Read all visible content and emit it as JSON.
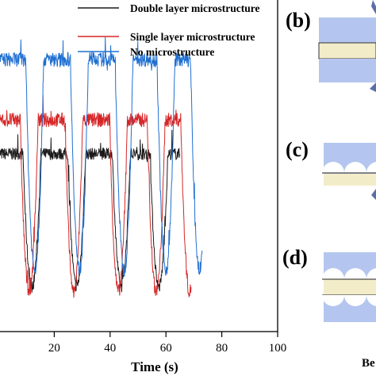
{
  "chart_data": {
    "type": "line",
    "xlabel": "Time (s)",
    "ylabel": "",
    "xlim": [
      0,
      100
    ],
    "x_ticks": [
      20,
      40,
      60,
      80,
      100
    ],
    "x_tick_labels": [
      "20",
      "40",
      "60",
      "80",
      "100"
    ],
    "legend_position": "top-right",
    "grid": false,
    "series": [
      {
        "name": "Double layer microstructure",
        "color": "#1a1a1a",
        "t_end": 65,
        "high": 0.61,
        "low": 0.06,
        "noise": 0.025,
        "dips": [
          12,
          28,
          44,
          57.5
        ]
      },
      {
        "name": "Single layer microstructure",
        "color": "#d62728",
        "t_end": 69,
        "high": 0.75,
        "low": 0.04,
        "noise": 0.03,
        "dips": [
          11,
          27,
          43,
          56.5,
          68.5
        ]
      },
      {
        "name": "No microstructure",
        "color": "#1f6fd1",
        "t_end": 73,
        "high": 1.0,
        "low": 0.13,
        "noise": 0.03,
        "dips": [
          13,
          29,
          45,
          60,
          72
        ]
      }
    ]
  },
  "panels": [
    {
      "letter": "(b)"
    },
    {
      "letter": "(c)"
    },
    {
      "letter": "(d)"
    }
  ],
  "caption_fragment": "Be",
  "colors": {
    "layer_blue": "#b4c6ef",
    "layer_yellow": "#f3ecc9",
    "arrow": "#5a6ea8"
  }
}
